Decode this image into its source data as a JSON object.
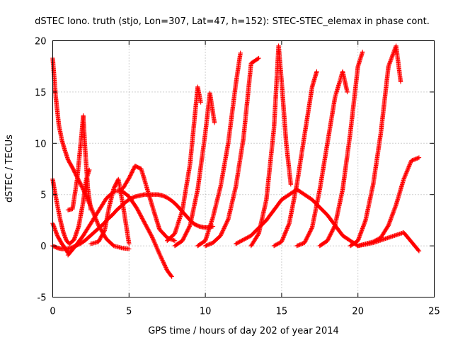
{
  "chart_data": {
    "type": "scatter",
    "title": "dSTEC Iono. truth (stjo, Lon=307, Lat=47, h=152): STEC-STEC_elemax in phase cont.",
    "xlabel": "GPS time / hours of day 202 of year 2014",
    "ylabel": "dSTEC  / TECUs",
    "xlim": [
      0,
      25
    ],
    "ylim": [
      -5,
      20
    ],
    "xticks": [
      0,
      5,
      10,
      15,
      20,
      25
    ],
    "yticks": [
      -5,
      0,
      5,
      10,
      15,
      20
    ],
    "grid": true,
    "marker": "+",
    "color": "#ff0000",
    "series": [
      {
        "x": [
          0.0,
          0.2,
          0.4,
          0.6,
          0.8,
          1.0,
          1.3,
          1.6,
          2.0,
          2.5,
          3.0,
          3.5,
          4.0,
          4.5,
          5.0
        ],
        "y": [
          18.3,
          14.5,
          11.8,
          10.3,
          9.3,
          8.4,
          7.6,
          6.7,
          5.5,
          3.8,
          2.0,
          0.7,
          0.0,
          -0.2,
          -0.3
        ]
      },
      {
        "x": [
          0.0,
          0.3,
          0.6,
          0.9,
          1.2,
          1.5,
          1.8,
          2.1,
          2.4,
          2.7,
          3.0,
          3.3,
          3.6,
          3.9,
          4.2,
          4.5,
          4.8,
          5.1,
          5.4,
          5.7,
          6.0,
          6.3,
          6.6,
          6.9,
          7.2,
          7.5,
          7.8,
          8.1,
          8.4,
          8.7,
          9.0,
          9.3,
          9.6,
          9.9,
          10.2,
          10.5
        ],
        "y": [
          0.0,
          -0.2,
          -0.3,
          -0.3,
          -0.2,
          0.0,
          0.2,
          0.5,
          0.9,
          1.3,
          1.7,
          2.1,
          2.6,
          3.0,
          3.5,
          3.9,
          4.3,
          4.6,
          4.8,
          4.9,
          5.0,
          5.0,
          5.0,
          5.0,
          4.9,
          4.7,
          4.4,
          4.0,
          3.5,
          3.0,
          2.5,
          2.1,
          1.9,
          1.8,
          1.8,
          1.9
        ]
      },
      {
        "x": [
          0.0,
          0.1,
          0.3,
          0.5,
          0.7,
          0.9,
          1.1,
          1.4,
          1.7,
          2.0,
          2.2,
          2.4
        ],
        "y": [
          6.5,
          5.6,
          4.0,
          2.5,
          1.3,
          0.5,
          0.2,
          0.6,
          1.9,
          4.3,
          6.5,
          7.4
        ]
      },
      {
        "x": [
          0.0,
          0.3,
          0.6,
          0.9,
          1.0
        ],
        "y": [
          2.2,
          1.0,
          0.2,
          -0.4,
          -0.7
        ]
      },
      {
        "x": [
          1.0,
          1.5,
          2.0,
          2.5,
          3.0,
          3.5,
          4.0,
          4.5,
          5.0,
          5.5,
          6.0,
          6.5,
          7.0,
          7.5,
          7.8
        ],
        "y": [
          -0.9,
          0.0,
          1.0,
          2.2,
          3.4,
          4.6,
          5.3,
          5.4,
          4.8,
          3.7,
          2.3,
          0.9,
          -0.8,
          -2.4,
          -3.0
        ]
      },
      {
        "x": [
          1.0,
          1.3,
          1.6,
          1.9,
          2.0,
          2.1,
          2.3,
          2.5
        ],
        "y": [
          3.5,
          3.6,
          6.5,
          11.0,
          12.7,
          10.0,
          5.6,
          3.5
        ]
      },
      {
        "x": [
          2.5,
          3.0,
          3.4,
          3.7,
          4.0,
          4.3,
          4.6,
          5.0
        ],
        "y": [
          0.2,
          0.4,
          1.5,
          3.8,
          5.6,
          6.5,
          4.0,
          0.2
        ]
      },
      {
        "x": [
          4.6,
          5.0,
          5.4,
          5.8,
          6.2,
          6.6,
          7.0,
          7.5,
          8.0
        ],
        "y": [
          5.6,
          6.6,
          7.8,
          7.5,
          5.5,
          3.5,
          1.6,
          0.8,
          0.5
        ]
      },
      {
        "x": [
          7.5,
          8.0,
          8.5,
          9.0,
          9.3,
          9.5,
          9.7
        ],
        "y": [
          0.5,
          1.2,
          3.5,
          8.0,
          12.5,
          15.5,
          14.0
        ]
      },
      {
        "x": [
          8.0,
          8.5,
          9.0,
          9.5,
          10.0,
          10.3,
          10.6
        ],
        "y": [
          0.0,
          0.5,
          2.0,
          5.5,
          11.0,
          14.9,
          12.0
        ]
      },
      {
        "x": [
          9.5,
          10.0,
          10.5,
          11.0,
          11.5,
          12.0,
          12.3
        ],
        "y": [
          0.0,
          0.5,
          2.8,
          5.8,
          10.0,
          15.8,
          18.8
        ]
      },
      {
        "x": [
          10.0,
          10.5,
          11.0,
          11.5,
          12.0,
          12.5,
          13.0,
          13.5
        ],
        "y": [
          0.0,
          0.3,
          1.0,
          2.6,
          5.8,
          10.5,
          17.8,
          18.3
        ]
      },
      {
        "x": [
          13.0,
          13.5,
          14.0,
          14.5,
          14.8,
          15.0,
          15.3,
          15.6
        ],
        "y": [
          0.0,
          1.2,
          4.5,
          11.5,
          19.5,
          16.0,
          10.0,
          6.0
        ]
      },
      {
        "x": [
          14.5,
          15.0,
          15.5,
          16.0,
          16.5,
          17.0,
          17.3
        ],
        "y": [
          0.0,
          0.4,
          2.2,
          6.0,
          10.8,
          15.5,
          17.0
        ]
      },
      {
        "x": [
          16.0,
          16.5,
          17.0,
          17.5,
          18.0,
          18.5,
          19.0,
          19.3
        ],
        "y": [
          0.0,
          0.3,
          1.8,
          5.5,
          10.0,
          14.5,
          17.0,
          15.0
        ]
      },
      {
        "x": [
          17.5,
          18.0,
          18.5,
          19.0,
          19.5,
          20.0,
          20.3
        ],
        "y": [
          0.0,
          0.5,
          2.0,
          5.5,
          11.0,
          17.5,
          18.9
        ]
      },
      {
        "x": [
          19.5,
          20.0,
          20.5,
          21.0,
          21.5,
          22.0,
          22.5,
          22.8
        ],
        "y": [
          0.0,
          0.5,
          2.5,
          6.0,
          11.0,
          17.5,
          19.5,
          16.0
        ]
      },
      {
        "x": [
          20.0,
          20.5,
          21.0,
          21.5,
          22.0,
          22.5,
          23.0,
          23.5,
          24.0
        ],
        "y": [
          0.0,
          0.2,
          0.4,
          0.8,
          2.0,
          4.0,
          6.5,
          8.3,
          8.6
        ]
      },
      {
        "x": [
          12.0,
          13.0,
          14.0,
          15.0,
          16.0,
          17.0,
          18.0,
          19.0,
          20.0,
          21.0,
          22.0,
          23.0,
          24.0
        ],
        "y": [
          0.2,
          1.0,
          2.5,
          4.5,
          5.5,
          4.5,
          3.0,
          1.0,
          0.0,
          0.3,
          0.8,
          1.3,
          -0.5
        ]
      }
    ]
  }
}
